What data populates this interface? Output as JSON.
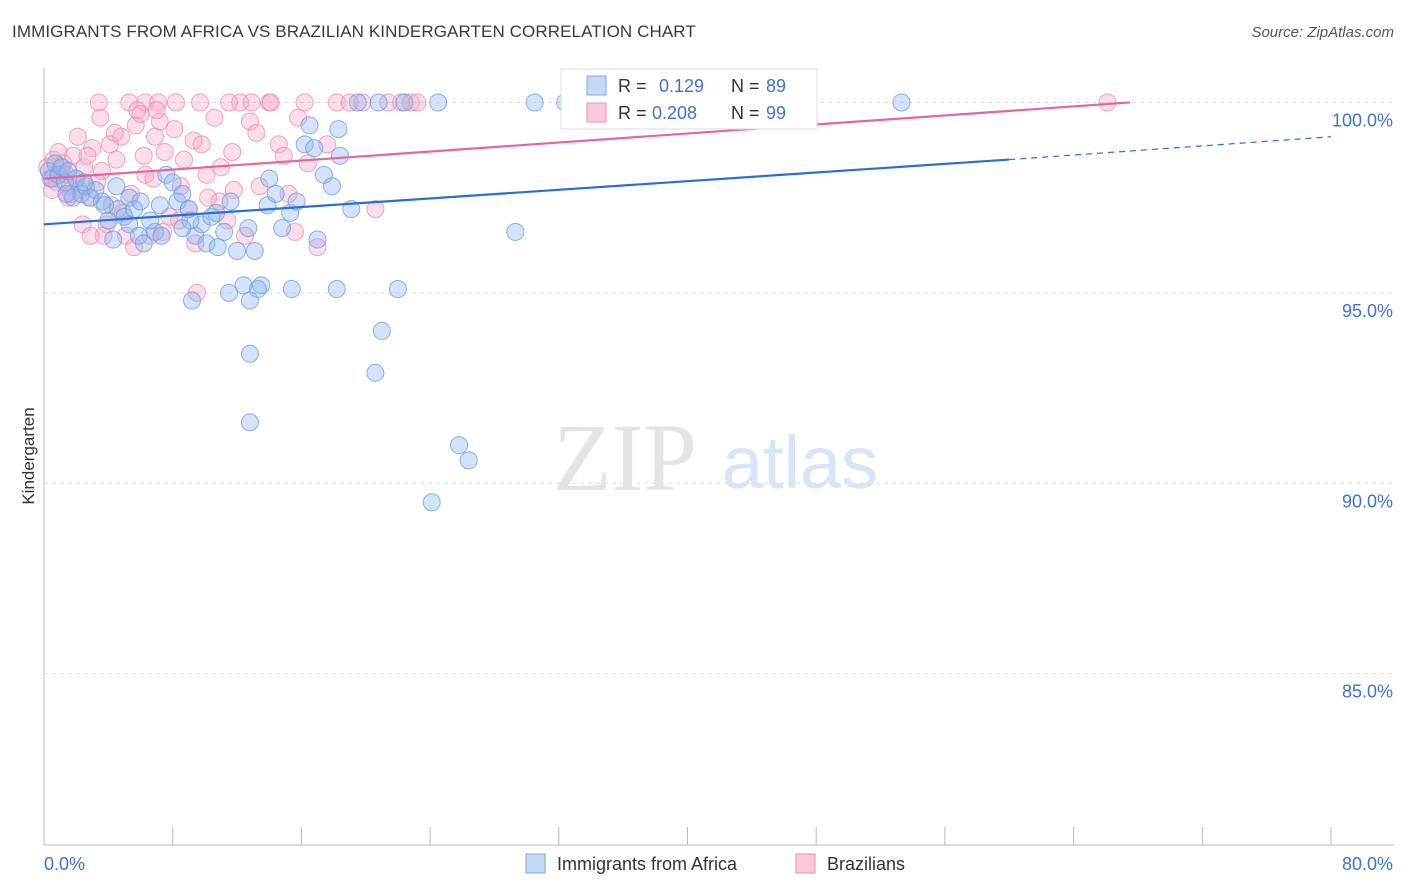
{
  "header": {
    "title": "IMMIGRANTS FROM AFRICA VS BRAZILIAN KINDERGARTEN CORRELATION CHART",
    "source": "Source: ZipAtlas.com"
  },
  "watermark": {
    "zip": "ZIP",
    "atlas": "atlas"
  },
  "colors": {
    "blue": "#8fb6ee",
    "blue_stroke": "#6f9fe0",
    "blue_line": "#2b6fd1",
    "pink": "#f4a9c4",
    "pink_stroke": "#ec8fb0",
    "pink_line": "#e4679a",
    "axis_text": "#3f74c9",
    "grid": "#dddddd"
  },
  "chart_data": {
    "type": "scatter",
    "title": "IMMIGRANTS FROM AFRICA VS BRAZILIAN KINDERGARTEN CORRELATION CHART",
    "xlabel": "",
    "ylabel": "Kindergarten",
    "xlim": [
      0,
      80
    ],
    "ylim": [
      80.5,
      100.8
    ],
    "x_tick_labels": [
      "0.0%",
      "80.0%"
    ],
    "y_ticks": [
      100,
      95,
      90,
      85
    ],
    "y_tick_labels": [
      "100.0%",
      "95.0%",
      "90.0%",
      "85.0%"
    ],
    "grid": true,
    "legend": [
      {
        "name": "Immigrants from Africa",
        "r_label": "R =",
        "r_value": "0.129",
        "n_label": "N =",
        "n_value": "89"
      },
      {
        "name": "Brazilians",
        "r_label": "R =",
        "r_value": "0.208",
        "n_label": "N =",
        "n_value": "99"
      }
    ],
    "series": [
      {
        "name": "Immigrants from Africa",
        "trend": {
          "x0": 0,
          "y0": 96.8,
          "x1": 60,
          "y1": 98.5,
          "x_dash_end": 80,
          "y_dash_end": 99.1
        },
        "points": [
          [
            0.3,
            98.2
          ],
          [
            0.5,
            98.0
          ],
          [
            0.7,
            98.4
          ],
          [
            0.9,
            98.1
          ],
          [
            1.1,
            98.3
          ],
          [
            1.3,
            97.9
          ],
          [
            1.5,
            98.2
          ],
          [
            1.8,
            97.5
          ],
          [
            2.0,
            98.0
          ],
          [
            2.3,
            97.6
          ],
          [
            2.6,
            97.8
          ],
          [
            2.9,
            97.5
          ],
          [
            3.2,
            97.7
          ],
          [
            3.6,
            97.4
          ],
          [
            4.0,
            96.9
          ],
          [
            4.3,
            96.4
          ],
          [
            4.6,
            97.2
          ],
          [
            5.0,
            97.0
          ],
          [
            5.3,
            96.8
          ],
          [
            5.6,
            97.2
          ],
          [
            5.9,
            96.5
          ],
          [
            6.2,
            96.3
          ],
          [
            6.6,
            96.9
          ],
          [
            6.9,
            96.6
          ],
          [
            7.2,
            97.3
          ],
          [
            7.6,
            98.1
          ],
          [
            8.0,
            97.9
          ],
          [
            8.3,
            97.4
          ],
          [
            8.6,
            97.6
          ],
          [
            9.0,
            97.2
          ],
          [
            9.4,
            96.5
          ],
          [
            9.8,
            96.8
          ],
          [
            10.1,
            96.3
          ],
          [
            10.4,
            97.0
          ],
          [
            10.8,
            96.2
          ],
          [
            11.2,
            96.6
          ],
          [
            11.6,
            97.4
          ],
          [
            12.0,
            96.1
          ],
          [
            12.4,
            95.2
          ],
          [
            12.7,
            96.7
          ],
          [
            13.1,
            96.1
          ],
          [
            13.5,
            95.2
          ],
          [
            13.9,
            97.3
          ],
          [
            14.4,
            97.6
          ],
          [
            14.8,
            96.7
          ],
          [
            15.3,
            97.1
          ],
          [
            15.7,
            97.4
          ],
          [
            16.2,
            98.9
          ],
          [
            16.5,
            99.4
          ],
          [
            17.0,
            96.4
          ],
          [
            17.4,
            98.1
          ],
          [
            17.9,
            97.8
          ],
          [
            18.3,
            99.3
          ],
          [
            11.5,
            95.0
          ],
          [
            12.8,
            94.8
          ],
          [
            9.2,
            94.8
          ],
          [
            15.4,
            95.1
          ],
          [
            18.2,
            95.1
          ],
          [
            22.0,
            95.1
          ],
          [
            21.0,
            94.0
          ],
          [
            12.8,
            93.4
          ],
          [
            20.6,
            92.9
          ],
          [
            12.8,
            91.6
          ],
          [
            25.8,
            91.0
          ],
          [
            26.4,
            90.6
          ],
          [
            24.1,
            89.5
          ],
          [
            29.3,
            96.6
          ],
          [
            19.5,
            100.0
          ],
          [
            20.8,
            100.0
          ],
          [
            22.4,
            100.0
          ],
          [
            24.5,
            100.0
          ],
          [
            30.5,
            100.0
          ],
          [
            32.4,
            100.0
          ],
          [
            53.3,
            100.0
          ],
          [
            9.1,
            96.9
          ],
          [
            10.7,
            97.1
          ],
          [
            14.0,
            98.0
          ],
          [
            5.3,
            97.5
          ],
          [
            3.8,
            97.3
          ],
          [
            7.3,
            96.5
          ],
          [
            16.8,
            98.8
          ],
          [
            18.4,
            98.6
          ],
          [
            19.1,
            97.2
          ],
          [
            13.3,
            95.1
          ],
          [
            8.6,
            96.7
          ],
          [
            6.0,
            97.4
          ],
          [
            4.5,
            97.8
          ],
          [
            2.5,
            97.9
          ],
          [
            1.4,
            97.6
          ]
        ]
      },
      {
        "name": "Brazilians",
        "trend": {
          "x0": 0,
          "y0": 98.0,
          "x1": 67.5,
          "y1": 100.0
        },
        "points": [
          [
            0.2,
            98.3
          ],
          [
            0.4,
            98.0
          ],
          [
            0.6,
            98.5
          ],
          [
            0.8,
            97.9
          ],
          [
            1.0,
            98.2
          ],
          [
            1.2,
            98.4
          ],
          [
            1.4,
            98.1
          ],
          [
            1.6,
            97.8
          ],
          [
            1.8,
            98.6
          ],
          [
            2.0,
            98.0
          ],
          [
            2.2,
            97.7
          ],
          [
            2.5,
            98.3
          ],
          [
            2.8,
            97.5
          ],
          [
            3.0,
            98.8
          ],
          [
            3.3,
            97.9
          ],
          [
            3.6,
            98.2
          ],
          [
            3.9,
            96.8
          ],
          [
            4.2,
            97.3
          ],
          [
            4.5,
            98.5
          ],
          [
            4.8,
            99.1
          ],
          [
            5.1,
            96.5
          ],
          [
            5.4,
            97.6
          ],
          [
            5.7,
            99.4
          ],
          [
            6.0,
            99.7
          ],
          [
            6.3,
            98.1
          ],
          [
            6.6,
            96.5
          ],
          [
            6.9,
            99.1
          ],
          [
            7.2,
            99.5
          ],
          [
            7.5,
            98.7
          ],
          [
            7.8,
            97.0
          ],
          [
            8.1,
            99.3
          ],
          [
            8.4,
            96.9
          ],
          [
            8.7,
            98.5
          ],
          [
            9.0,
            97.2
          ],
          [
            9.4,
            96.3
          ],
          [
            9.8,
            98.9
          ],
          [
            10.2,
            97.5
          ],
          [
            10.6,
            99.6
          ],
          [
            11.0,
            98.3
          ],
          [
            11.4,
            96.9
          ],
          [
            11.8,
            97.7
          ],
          [
            12.2,
            100.0
          ],
          [
            12.8,
            99.5
          ],
          [
            13.4,
            97.8
          ],
          [
            14.0,
            100.0
          ],
          [
            14.6,
            98.9
          ],
          [
            15.2,
            97.6
          ],
          [
            15.8,
            99.6
          ],
          [
            16.4,
            98.4
          ],
          [
            17.0,
            96.2
          ],
          [
            17.6,
            98.9
          ],
          [
            18.2,
            100.0
          ],
          [
            19.0,
            100.0
          ],
          [
            19.8,
            100.0
          ],
          [
            20.6,
            97.2
          ],
          [
            21.4,
            100.0
          ],
          [
            22.2,
            100.0
          ],
          [
            22.8,
            100.0
          ],
          [
            23.2,
            100.0
          ],
          [
            3.4,
            100.0
          ],
          [
            5.3,
            100.0
          ],
          [
            6.3,
            100.0
          ],
          [
            7.1,
            100.0
          ],
          [
            8.2,
            100.0
          ],
          [
            9.7,
            100.0
          ],
          [
            11.5,
            100.0
          ],
          [
            12.9,
            100.0
          ],
          [
            14.1,
            100.0
          ],
          [
            16.2,
            100.0
          ],
          [
            66.1,
            100.0
          ],
          [
            2.1,
            99.1
          ],
          [
            2.7,
            98.6
          ],
          [
            3.5,
            99.6
          ],
          [
            4.1,
            98.9
          ],
          [
            4.9,
            97.1
          ],
          [
            5.6,
            96.2
          ],
          [
            6.2,
            98.6
          ],
          [
            6.8,
            98.0
          ],
          [
            7.4,
            96.6
          ],
          [
            8.5,
            97.8
          ],
          [
            9.3,
            99.0
          ],
          [
            10.1,
            98.1
          ],
          [
            10.9,
            97.4
          ],
          [
            11.7,
            98.7
          ],
          [
            12.5,
            96.5
          ],
          [
            13.2,
            99.2
          ],
          [
            14.9,
            98.6
          ],
          [
            15.6,
            96.6
          ],
          [
            1.5,
            97.5
          ],
          [
            0.9,
            98.7
          ],
          [
            2.4,
            96.8
          ],
          [
            3.7,
            96.5
          ],
          [
            4.4,
            99.2
          ],
          [
            5.8,
            99.8
          ],
          [
            7.0,
            99.8
          ],
          [
            9.5,
            95.0
          ],
          [
            1.7,
            97.6
          ],
          [
            0.5,
            97.7
          ],
          [
            2.9,
            96.5
          ]
        ]
      }
    ]
  }
}
